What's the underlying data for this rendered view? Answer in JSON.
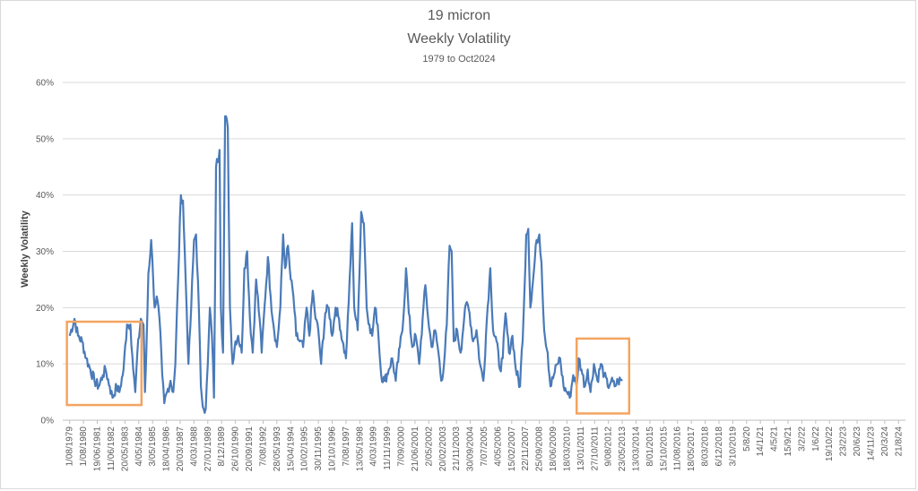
{
  "chart_data": {
    "type": "line",
    "title": "19 micron",
    "subtitle": "Weekly Volatility",
    "subtitle2": "1979 to Oct2024",
    "xlabel": "",
    "ylabel": "Weekly Volatility",
    "ylim": [
      0,
      0.6
    ],
    "yticks": [
      "0%",
      "10%",
      "20%",
      "30%",
      "40%",
      "50%",
      "60%"
    ],
    "grid": true,
    "legend": "none",
    "line_color": "#4a7ab8",
    "highlight_color": "#f4a460",
    "x_tick_labels": [
      "1/08/1979",
      "1/08/1980",
      "19/06/1981",
      "11/06/1982",
      "20/05/1983",
      "4/05/1984",
      "3/05/1985",
      "18/04/1986",
      "20/03/1987",
      "4/03/1988",
      "27/01/1989",
      "8/12/1989",
      "26/10/1990",
      "20/09/1991",
      "7/08/1992",
      "28/05/1993",
      "15/04/1994",
      "10/02/1995",
      "30/11/1995",
      "10/10/1996",
      "7/08/1997",
      "13/05/1998",
      "4/03/1999",
      "11/11/1999",
      "7/09/2000",
      "21/06/2001",
      "2/05/2002",
      "20/02/2003",
      "21/11/2003",
      "30/09/2004",
      "7/07/2005",
      "4/05/2006",
      "15/02/2007",
      "22/11/2007",
      "25/09/2008",
      "18/06/2009",
      "18/03/2010",
      "13/01/2011",
      "27/10/2011",
      "9/08/2012",
      "23/05/2013",
      "13/03/2014",
      "8/01/2015",
      "15/10/2015",
      "11/08/2016",
      "18/05/2017",
      "8/03/2018",
      "6/12/2018",
      "3/10/2019",
      "5/8/20",
      "14/1/21",
      "4/5/21",
      "15/9/21",
      "3/2/22",
      "1/6/22",
      "19/10/22",
      "23/2/23",
      "20/6/23",
      "14/11/23",
      "20/3/24",
      "21/8/24"
    ],
    "keypoints": [
      [
        0,
        0.15
      ],
      [
        0.35,
        0.18
      ],
      [
        0.6,
        0.15
      ],
      [
        0.9,
        0.14
      ],
      [
        1.2,
        0.11
      ],
      [
        1.5,
        0.09
      ],
      [
        1.8,
        0.07
      ],
      [
        2.1,
        0.06
      ],
      [
        2.4,
        0.08
      ],
      [
        2.6,
        0.09
      ],
      [
        2.9,
        0.06
      ],
      [
        3.1,
        0.04
      ],
      [
        3.4,
        0.06
      ],
      [
        3.6,
        0.05
      ],
      [
        3.9,
        0.09
      ],
      [
        4.15,
        0.17
      ],
      [
        4.4,
        0.17
      ],
      [
        4.6,
        0.09
      ],
      [
        4.75,
        0.05
      ],
      [
        4.9,
        0.12
      ],
      [
        5.15,
        0.18
      ],
      [
        5.35,
        0.17
      ],
      [
        5.45,
        0.05
      ],
      [
        5.55,
        0.12
      ],
      [
        5.7,
        0.26
      ],
      [
        5.9,
        0.32
      ],
      [
        6.05,
        0.25
      ],
      [
        6.15,
        0.2
      ],
      [
        6.3,
        0.22
      ],
      [
        6.5,
        0.18
      ],
      [
        6.7,
        0.08
      ],
      [
        6.85,
        0.03
      ],
      [
        7.05,
        0.05
      ],
      [
        7.3,
        0.07
      ],
      [
        7.5,
        0.05
      ],
      [
        7.65,
        0.1
      ],
      [
        7.85,
        0.25
      ],
      [
        8.05,
        0.4
      ],
      [
        8.2,
        0.39
      ],
      [
        8.4,
        0.25
      ],
      [
        8.6,
        0.1
      ],
      [
        8.8,
        0.2
      ],
      [
        9.0,
        0.32
      ],
      [
        9.15,
        0.33
      ],
      [
        9.35,
        0.2
      ],
      [
        9.5,
        0.06
      ],
      [
        9.7,
        0.02
      ],
      [
        9.85,
        0.02
      ],
      [
        10.0,
        0.1
      ],
      [
        10.15,
        0.2
      ],
      [
        10.3,
        0.15
      ],
      [
        10.45,
        0.04
      ],
      [
        10.6,
        0.45
      ],
      [
        10.85,
        0.48
      ],
      [
        10.95,
        0.2
      ],
      [
        11.1,
        0.12
      ],
      [
        11.25,
        0.54
      ],
      [
        11.45,
        0.52
      ],
      [
        11.6,
        0.2
      ],
      [
        11.8,
        0.1
      ],
      [
        12.0,
        0.14
      ],
      [
        12.2,
        0.15
      ],
      [
        12.45,
        0.12
      ],
      [
        12.65,
        0.27
      ],
      [
        12.85,
        0.3
      ],
      [
        13.05,
        0.18
      ],
      [
        13.25,
        0.12
      ],
      [
        13.5,
        0.25
      ],
      [
        13.75,
        0.18
      ],
      [
        13.9,
        0.12
      ],
      [
        14.1,
        0.2
      ],
      [
        14.35,
        0.29
      ],
      [
        14.55,
        0.22
      ],
      [
        14.75,
        0.17
      ],
      [
        15.0,
        0.13
      ],
      [
        15.25,
        0.2
      ],
      [
        15.45,
        0.33
      ],
      [
        15.6,
        0.27
      ],
      [
        15.8,
        0.31
      ],
      [
        16.0,
        0.25
      ],
      [
        16.2,
        0.22
      ],
      [
        16.4,
        0.15
      ],
      [
        16.65,
        0.14
      ],
      [
        16.9,
        0.13
      ],
      [
        17.15,
        0.2
      ],
      [
        17.35,
        0.15
      ],
      [
        17.6,
        0.23
      ],
      [
        17.8,
        0.18
      ],
      [
        18.0,
        0.16
      ],
      [
        18.2,
        0.1
      ],
      [
        18.5,
        0.19
      ],
      [
        18.75,
        0.2
      ],
      [
        19.0,
        0.15
      ],
      [
        19.25,
        0.2
      ],
      [
        19.5,
        0.18
      ],
      [
        19.75,
        0.14
      ],
      [
        20.0,
        0.11
      ],
      [
        20.2,
        0.21
      ],
      [
        20.45,
        0.35
      ],
      [
        20.6,
        0.2
      ],
      [
        20.85,
        0.16
      ],
      [
        21.1,
        0.37
      ],
      [
        21.3,
        0.35
      ],
      [
        21.5,
        0.2
      ],
      [
        21.7,
        0.17
      ],
      [
        21.9,
        0.15
      ],
      [
        22.1,
        0.2
      ],
      [
        22.3,
        0.17
      ],
      [
        22.55,
        0.08
      ],
      [
        22.8,
        0.07
      ],
      [
        23.1,
        0.09
      ],
      [
        23.35,
        0.11
      ],
      [
        23.6,
        0.07
      ],
      [
        23.9,
        0.13
      ],
      [
        24.15,
        0.18
      ],
      [
        24.35,
        0.27
      ],
      [
        24.55,
        0.19
      ],
      [
        24.8,
        0.13
      ],
      [
        25.05,
        0.15
      ],
      [
        25.3,
        0.1
      ],
      [
        25.55,
        0.18
      ],
      [
        25.75,
        0.24
      ],
      [
        25.95,
        0.18
      ],
      [
        26.2,
        0.13
      ],
      [
        26.45,
        0.16
      ],
      [
        26.7,
        0.12
      ],
      [
        26.9,
        0.07
      ],
      [
        27.1,
        0.1
      ],
      [
        27.3,
        0.17
      ],
      [
        27.5,
        0.31
      ],
      [
        27.65,
        0.3
      ],
      [
        27.8,
        0.14
      ],
      [
        28.05,
        0.16
      ],
      [
        28.3,
        0.12
      ],
      [
        28.55,
        0.18
      ],
      [
        28.75,
        0.21
      ],
      [
        28.95,
        0.19
      ],
      [
        29.2,
        0.14
      ],
      [
        29.45,
        0.16
      ],
      [
        29.7,
        0.1
      ],
      [
        29.95,
        0.07
      ],
      [
        30.2,
        0.18
      ],
      [
        30.45,
        0.27
      ],
      [
        30.65,
        0.16
      ],
      [
        30.9,
        0.14
      ],
      [
        31.15,
        0.09
      ],
      [
        31.35,
        0.11
      ],
      [
        31.55,
        0.19
      ],
      [
        31.8,
        0.12
      ],
      [
        32.05,
        0.15
      ],
      [
        32.3,
        0.09
      ],
      [
        32.6,
        0.06
      ],
      [
        32.85,
        0.18
      ],
      [
        33.05,
        0.33
      ],
      [
        33.2,
        0.34
      ],
      [
        33.35,
        0.2
      ],
      [
        33.55,
        0.25
      ],
      [
        33.8,
        0.32
      ],
      [
        34.0,
        0.33
      ],
      [
        34.15,
        0.28
      ],
      [
        34.35,
        0.16
      ],
      [
        34.6,
        0.12
      ],
      [
        34.8,
        0.06
      ],
      [
        35.05,
        0.08
      ],
      [
        35.3,
        0.1
      ],
      [
        35.5,
        0.11
      ],
      [
        35.75,
        0.06
      ],
      [
        36.0,
        0.05
      ],
      [
        36.2,
        0.04
      ],
      [
        36.45,
        0.08
      ],
      [
        36.7,
        0.06
      ],
      [
        36.85,
        0.11
      ],
      [
        37.05,
        0.09
      ],
      [
        37.3,
        0.06
      ],
      [
        37.5,
        0.09
      ],
      [
        37.7,
        0.05
      ],
      [
        37.95,
        0.1
      ],
      [
        38.2,
        0.07
      ],
      [
        38.45,
        0.1
      ],
      [
        38.7,
        0.08
      ],
      [
        38.95,
        0.06
      ],
      [
        39.2,
        0.07
      ],
      [
        39.45,
        0.06
      ],
      [
        39.7,
        0.07
      ],
      [
        40.0,
        0.07
      ]
    ],
    "highlights": [
      {
        "x0": -0.2,
        "x1": 5.2,
        "y0": 0.027,
        "y1": 0.175
      },
      {
        "x0": 36.7,
        "x1": 40.5,
        "y0": 0.012,
        "y1": 0.145
      }
    ]
  }
}
